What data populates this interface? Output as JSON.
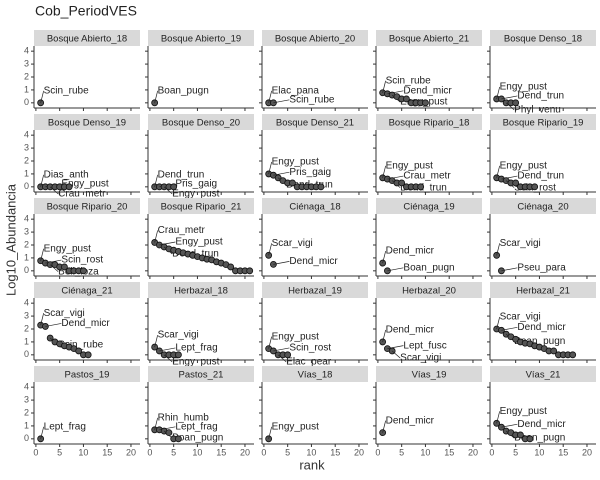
{
  "chart_data": {
    "type": "scatter",
    "title": "Cob_PeriodVES",
    "x_label": "rank",
    "y_label": "Log10_Abundancia",
    "xlim": [
      -0.4,
      21.9
    ],
    "ylim": [
      -0.4,
      4.4
    ],
    "xticks": [
      0,
      5,
      10,
      15,
      20
    ],
    "yticks": [
      0,
      1,
      2,
      3,
      4
    ],
    "point_color": "#555555",
    "strip_color": "#d9d9d9",
    "panels": [
      {
        "title": "Bosque Abierto_18",
        "x": [
          1
        ],
        "values": [
          0
        ],
        "labels": [
          "Scin_rube"
        ]
      },
      {
        "title": "Bosque Abierto_19",
        "x": [
          1
        ],
        "values": [
          0
        ],
        "labels": [
          "Boan_pugn"
        ]
      },
      {
        "title": "Bosque Abierto_20",
        "x": [
          1,
          2
        ],
        "values": [
          0,
          0
        ],
        "labels": [
          "Elac_pana",
          "Scin_rube"
        ]
      },
      {
        "title": "Bosque Abierto_21",
        "x": [
          1,
          2,
          3,
          4,
          5,
          6,
          7,
          8,
          9,
          10
        ],
        "values": [
          0.78,
          0.7,
          0.6,
          0.48,
          0.3,
          0.3,
          0,
          0,
          0,
          0
        ],
        "labels": [
          "Scin_rube",
          "Dend_micr",
          "Engy_pust",
          null,
          null,
          null,
          null,
          null,
          null,
          null
        ]
      },
      {
        "title": "Bosque Denso_18",
        "x": [
          1,
          2,
          3,
          4,
          5
        ],
        "values": [
          0.3,
          0.3,
          0,
          0,
          0
        ],
        "labels": [
          "Engy_pust",
          "Dend_trun",
          "Phyl_venu",
          null,
          null
        ]
      },
      {
        "title": "Bosque Denso_19",
        "x": [
          1,
          2,
          3,
          4,
          5,
          6,
          7
        ],
        "values": [
          0,
          0,
          0,
          0,
          0,
          0,
          0
        ],
        "labels": [
          "Dias_anth",
          "Engy_pust",
          "Crau_metr",
          null,
          null,
          null,
          null
        ]
      },
      {
        "title": "Bosque Denso_20",
        "x": [
          1,
          2,
          3,
          4,
          5
        ],
        "values": [
          0,
          0,
          0,
          0,
          0
        ],
        "labels": [
          "Dend_trun",
          "Pris_gaig",
          "Engy_pust",
          null,
          null
        ]
      },
      {
        "title": "Bosque Denso_21",
        "x": [
          1,
          2,
          3,
          4,
          5,
          6,
          7,
          8,
          9,
          10,
          11,
          12
        ],
        "values": [
          1.0,
          0.9,
          0.7,
          0.48,
          0.3,
          0.3,
          0,
          0,
          0,
          0,
          0,
          0
        ],
        "labels": [
          "Engy_pust",
          "Pris_gaig",
          "Dend_trun",
          null,
          null,
          null,
          null,
          null,
          null,
          null,
          null,
          null
        ]
      },
      {
        "title": "Bosque Ripario_18",
        "x": [
          1,
          2,
          3,
          4,
          5,
          6,
          7,
          8,
          9
        ],
        "values": [
          0.7,
          0.6,
          0.48,
          0.3,
          0.3,
          0,
          0,
          0,
          0
        ],
        "labels": [
          "Engy_pust",
          "Crau_metr",
          "Dend_trun",
          null,
          null,
          null,
          null,
          null,
          null
        ]
      },
      {
        "title": "Bosque Ripario_19",
        "x": [
          1,
          2,
          3,
          4,
          5,
          6,
          7,
          8,
          9
        ],
        "values": [
          0.7,
          0.6,
          0.48,
          0.3,
          0.3,
          0,
          0,
          0,
          0
        ],
        "labels": [
          "Engy_pust",
          "Dend_trun",
          "Scin_rost",
          null,
          null,
          null,
          null,
          null,
          null
        ]
      },
      {
        "title": "Bosque Ripario_20",
        "x": [
          1,
          2,
          3,
          4,
          5,
          6,
          7,
          8,
          9,
          10
        ],
        "values": [
          0.78,
          0.6,
          0.48,
          0.48,
          0.3,
          0.3,
          0,
          0,
          0,
          0
        ],
        "labels": [
          "Engy_pust",
          "Scin_rost",
          "Boli_loza",
          null,
          null,
          null,
          null,
          null,
          null,
          null
        ]
      },
      {
        "title": "Bosque Ripario_21",
        "x": [
          1,
          2,
          3,
          4,
          5,
          6,
          7,
          8,
          9,
          10,
          11,
          12,
          13,
          14,
          15,
          16,
          17,
          18,
          19,
          20,
          21
        ],
        "values": [
          2.2,
          2.0,
          1.85,
          1.7,
          1.6,
          1.5,
          1.4,
          1.3,
          1.2,
          1.1,
          1.0,
          0.9,
          0.85,
          0.7,
          0.6,
          0.48,
          0.3,
          0,
          0,
          0,
          0
        ],
        "labels": [
          "Crau_metr",
          "Engy_pust",
          "Dend_trun",
          null,
          null,
          null,
          null,
          null,
          null,
          null,
          null,
          null,
          null,
          null,
          null,
          null,
          null,
          null,
          null,
          null,
          null
        ]
      },
      {
        "title": "Ciénaga_18",
        "x": [
          1,
          2
        ],
        "values": [
          1.2,
          0.5
        ],
        "labels": [
          "Scar_vigi",
          "Dend_micr"
        ]
      },
      {
        "title": "Ciénaga_19",
        "x": [
          1,
          2
        ],
        "values": [
          0.6,
          0
        ],
        "labels": [
          "Dend_micr",
          "Boan_pugn"
        ]
      },
      {
        "title": "Ciénaga_20",
        "x": [
          1,
          2
        ],
        "values": [
          1.2,
          0
        ],
        "labels": [
          "Scar_vigi",
          "Pseu_para"
        ]
      },
      {
        "title": "Ciénaga_21",
        "x": [
          1,
          2,
          3,
          4,
          5,
          6,
          7,
          8,
          9,
          10,
          11
        ],
        "values": [
          2.3,
          2.2,
          1.3,
          1.0,
          0.85,
          0.7,
          0.6,
          0.48,
          0.3,
          0,
          0
        ],
        "labels": [
          "Scar_vigi",
          "Dend_micr",
          "Scin_rube",
          null,
          null,
          null,
          null,
          null,
          null,
          null,
          null
        ]
      },
      {
        "title": "Herbazal_18",
        "x": [
          1,
          2,
          3,
          4,
          5,
          6
        ],
        "values": [
          0.6,
          0.3,
          0,
          0,
          0,
          0
        ],
        "labels": [
          "Scar_vigi",
          "Lept_frag",
          "Engy_pust",
          null,
          null,
          null
        ]
      },
      {
        "title": "Herbazal_19",
        "x": [
          1,
          2,
          3,
          4,
          5
        ],
        "values": [
          0.48,
          0.3,
          0,
          0,
          0
        ],
        "labels": [
          "Engy_pust",
          "Scin_rost",
          "Elac_pear",
          null,
          null
        ]
      },
      {
        "title": "Herbazal_20",
        "x": [
          1,
          2,
          3
        ],
        "values": [
          1.0,
          0.48,
          0.3
        ],
        "labels": [
          "Dend_micr",
          "Lept_fusc",
          "Scar_vigi"
        ]
      },
      {
        "title": "Herbazal_21",
        "x": [
          1,
          2,
          3,
          4,
          5,
          6,
          7,
          8,
          9,
          10,
          11,
          12,
          13,
          14,
          15,
          16,
          17
        ],
        "values": [
          2.0,
          1.9,
          1.6,
          1.4,
          1.2,
          1.0,
          0.9,
          0.85,
          0.7,
          0.6,
          0.48,
          0.3,
          0.3,
          0,
          0,
          0,
          0
        ],
        "labels": [
          "Scar_vigi",
          "Dend_micr",
          "Boan_pugn",
          null,
          null,
          null,
          null,
          null,
          null,
          null,
          null,
          null,
          null,
          null,
          null,
          null,
          null
        ]
      },
      {
        "title": "Pastos_19",
        "x": [
          1
        ],
        "values": [
          0
        ],
        "labels": [
          "Lept_frag"
        ]
      },
      {
        "title": "Pastos_21",
        "x": [
          1,
          2,
          3,
          4,
          5,
          6
        ],
        "values": [
          0.7,
          0.7,
          0.6,
          0.48,
          0,
          0
        ],
        "labels": [
          "Rhin_humb",
          "Lept_frag",
          "Boan_pugn",
          null,
          null,
          null
        ]
      },
      {
        "title": "Vías_18",
        "x": [
          1
        ],
        "values": [
          0
        ],
        "labels": [
          "Engy_pust"
        ]
      },
      {
        "title": "Vías_19",
        "x": [
          1
        ],
        "values": [
          0.48
        ],
        "labels": [
          "Dend_micr"
        ]
      },
      {
        "title": "Vías_21",
        "x": [
          1,
          2,
          3,
          4,
          5,
          6,
          7,
          8
        ],
        "values": [
          1.2,
          0.9,
          0.6,
          0.48,
          0.3,
          0.3,
          0,
          0
        ],
        "labels": [
          "Engy_pust",
          "Dend_micr",
          "Boan_pugn",
          null,
          null,
          null,
          null,
          null
        ]
      }
    ]
  }
}
